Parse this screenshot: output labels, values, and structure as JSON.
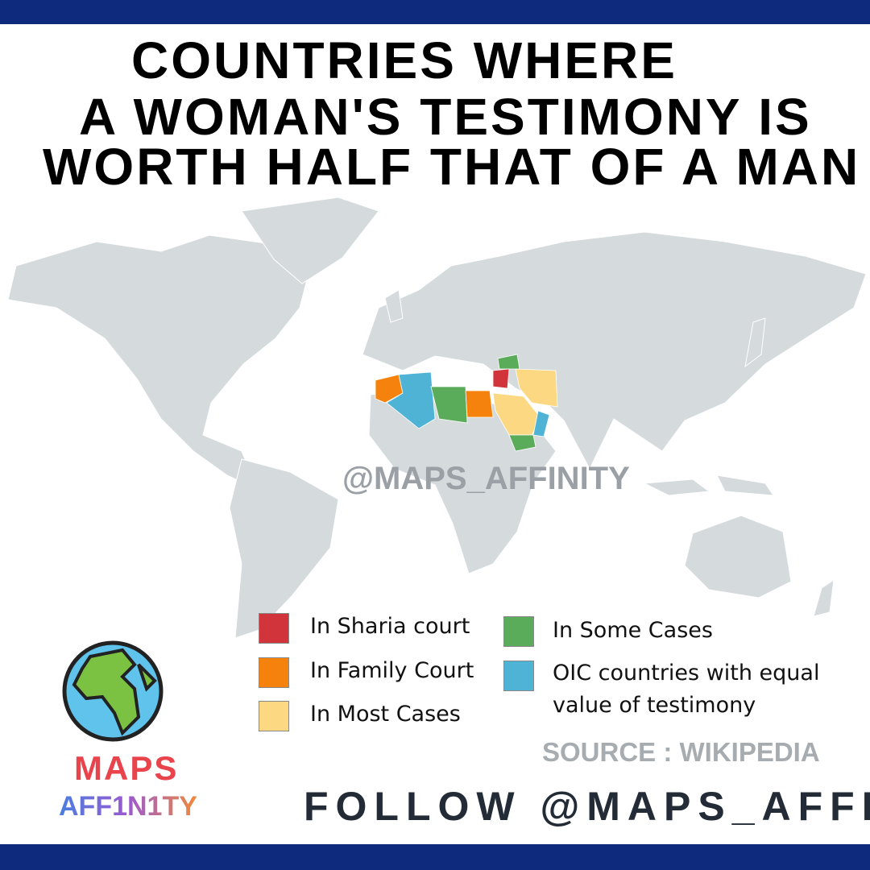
{
  "header": {
    "title_lines": [
      "COUNTRIES WHERE",
      "A WOMAN'S TESTIMONY IS",
      "WORTH HALF THAT OF A MAN"
    ]
  },
  "watermark": "@MAPS_AFFINITY",
  "legend": {
    "items": [
      {
        "label": "In Sharia court",
        "color": "#d1343b"
      },
      {
        "label": "In Family Court",
        "color": "#f5820d"
      },
      {
        "label": "In Most Cases",
        "color": "#fdd882"
      },
      {
        "label": "In Some Cases",
        "color": "#5aab5a"
      },
      {
        "label": "OIC countries with equal value of testimony",
        "color": "#4fb3d6"
      }
    ]
  },
  "source": "SOURCE : WIKIPEDIA",
  "footer": "FOLLOW @MAPS_AFFINITY",
  "logo": {
    "line1": "MAPS",
    "line2": "AFF1N1TY"
  }
}
